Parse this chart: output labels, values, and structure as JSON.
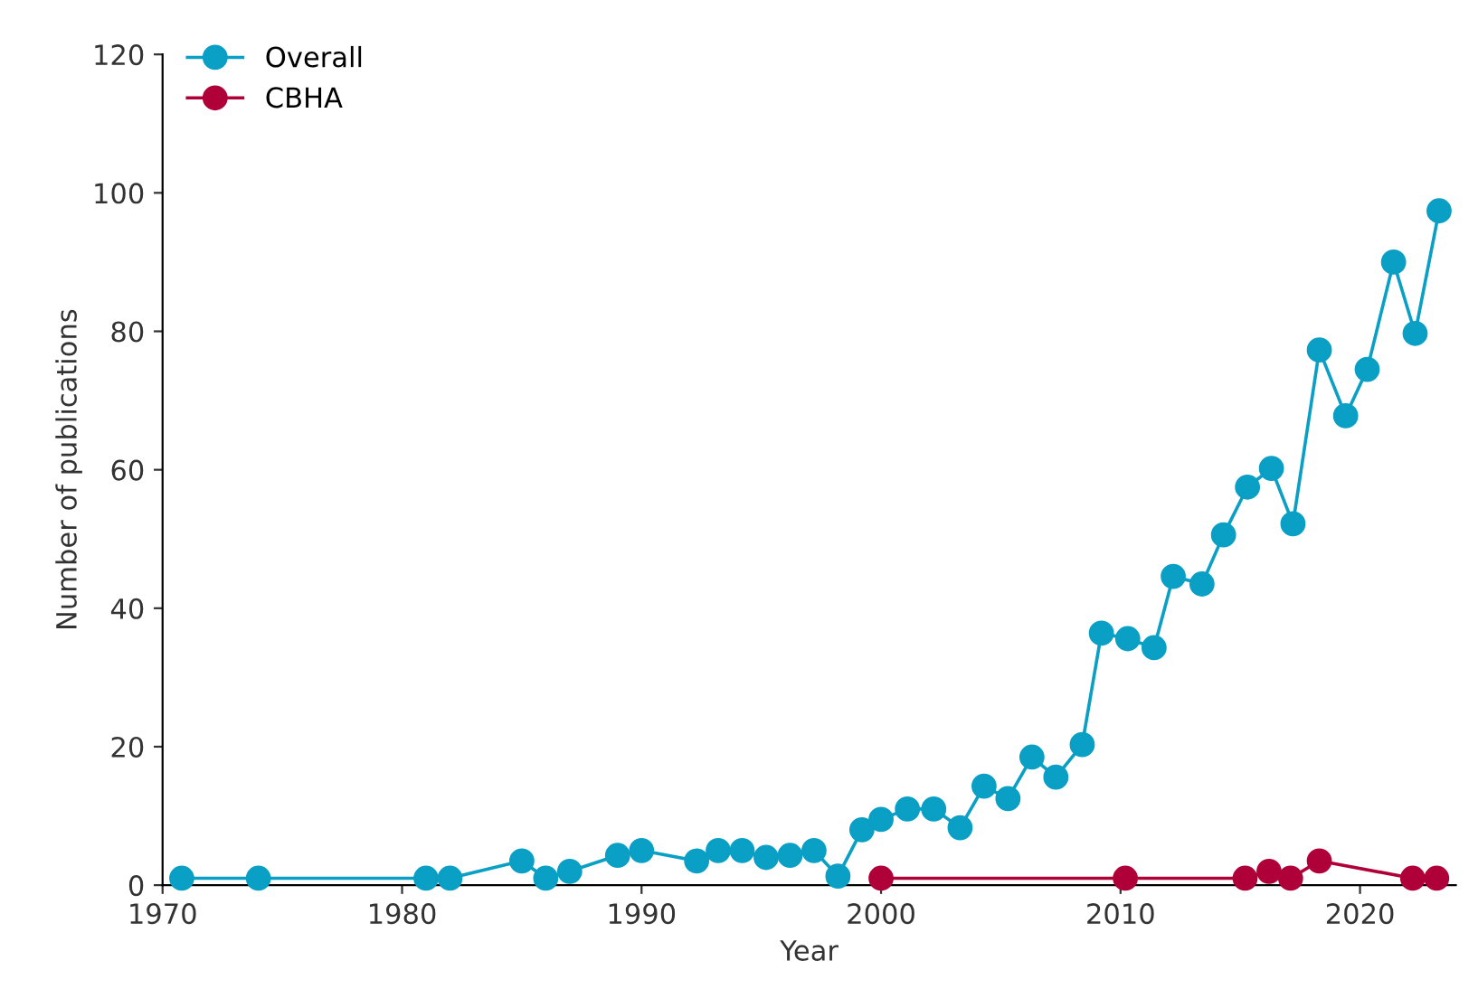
{
  "chart_data": {
    "type": "line",
    "xlabel": "Year",
    "ylabel": "Number of publications",
    "xlim": [
      1970,
      2024
    ],
    "xticks": [
      1970,
      1980,
      1990,
      2000,
      2010,
      2020
    ],
    "ylim": [
      0,
      120
    ],
    "yticks": [
      0,
      20,
      40,
      60,
      80,
      100,
      120
    ],
    "grid": false,
    "legend": "top left",
    "marker": "circle",
    "line_style": "solid",
    "series": [
      {
        "name": "Overall",
        "color": "#0a9fc4",
        "x": [
          1970.8,
          1974,
          1981,
          1982,
          1985,
          1986,
          1987,
          1989,
          1990,
          1992.3,
          1993.2,
          1994.2,
          1995.2,
          1996.2,
          1997.2,
          1998.2,
          1999.2,
          2000,
          2001.1,
          2002.2,
          2003.3,
          2004.3,
          2005.3,
          2006.3,
          2007.3,
          2008.4,
          2009.2,
          2010.3,
          2011.4,
          2012.2,
          2013.4,
          2014.3,
          2015.3,
          2016.3,
          2017.2,
          2018.3,
          2019.4,
          2020.3,
          2021.4,
          2022.3,
          2023.3
        ],
        "values": [
          1,
          1,
          1,
          1,
          3.5,
          1,
          2,
          4.3,
          5,
          3.5,
          5,
          5,
          4,
          4.3,
          5,
          1.3,
          8,
          9.5,
          11,
          11,
          8.3,
          14.3,
          12.5,
          18.5,
          15.6,
          20.3,
          36.4,
          35.6,
          34.3,
          44.6,
          43.5,
          50.6,
          57.5,
          60.2,
          52.2,
          77.3,
          67.8,
          74.5,
          90,
          79.7,
          97.4
        ]
      },
      {
        "name": "CBHA",
        "color": "#b0003a",
        "x": [
          2000,
          2010.2,
          2015.2,
          2016.2,
          2017.1,
          2018.3,
          2022.2,
          2023.2
        ],
        "values": [
          1,
          1,
          1,
          2,
          1,
          3.5,
          1,
          1
        ]
      }
    ]
  }
}
